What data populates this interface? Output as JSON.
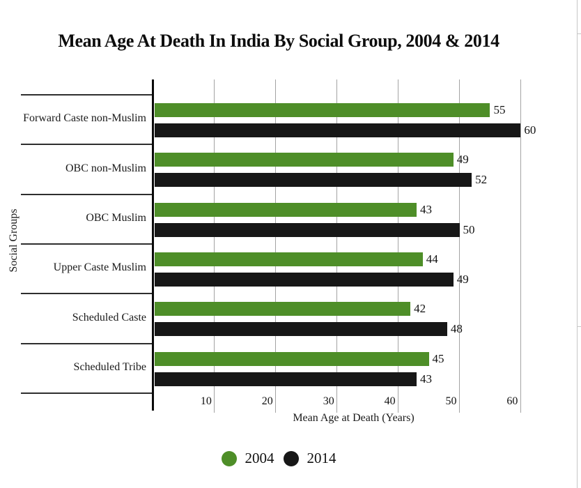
{
  "title": "Mean Age At Death In India By Social Group, 2004 & 2014",
  "chart_data": {
    "type": "bar",
    "orientation": "horizontal",
    "title": "Mean Age At Death In India By Social Group, 2004 & 2014",
    "xlabel": "Mean Age at Death (Years)",
    "ylabel": "Social Groups",
    "categories": [
      "Forward Caste non-Muslim",
      "OBC non-Muslim",
      "OBC Muslim",
      "Upper Caste Muslim",
      "Scheduled Caste",
      "Scheduled Tribe"
    ],
    "series": [
      {
        "name": "2004",
        "color": "#4e8e28",
        "values": [
          55,
          49,
          43,
          44,
          42,
          45
        ]
      },
      {
        "name": "2014",
        "color": "#171717",
        "values": [
          60,
          52,
          50,
          49,
          48,
          43
        ]
      }
    ],
    "x_ticks": [
      10,
      20,
      30,
      40,
      50,
      60
    ],
    "xlim": [
      0,
      65
    ],
    "grid": true,
    "legend_position": "bottom"
  }
}
